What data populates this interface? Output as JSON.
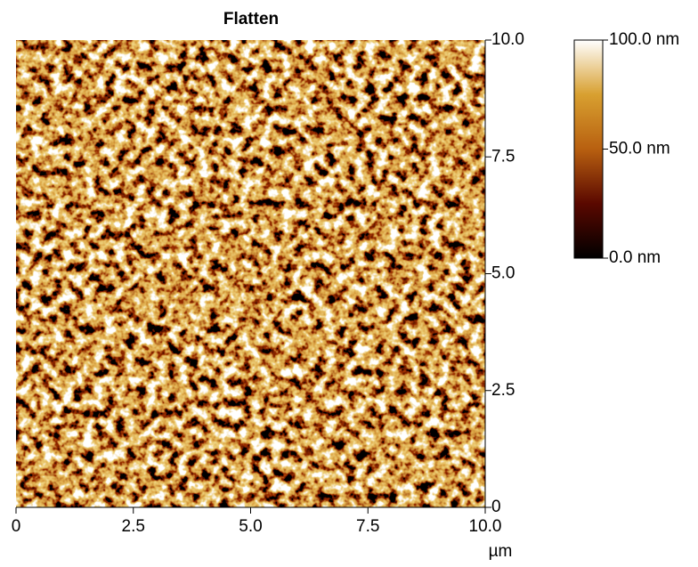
{
  "chart_data": {
    "type": "image",
    "title": "Flatten",
    "xlabel": "µm",
    "xlim": [
      0,
      10
    ],
    "xticks": [
      0,
      2.5,
      {
        "value": 5,
        "label": "5.0"
      },
      7.5,
      {
        "value": 10,
        "label": "10.0"
      }
    ],
    "ylim": [
      0,
      10
    ],
    "yticks": [
      0,
      2.5,
      {
        "value": 5,
        "label": "5.0"
      },
      7.5,
      {
        "value": 10,
        "label": "10.0"
      }
    ],
    "colorbar": {
      "lim": [
        0,
        100
      ],
      "ticks": [
        {
          "value": 0,
          "label": "0.0 nm"
        },
        {
          "value": 50,
          "label": "50.0 nm"
        },
        {
          "value": 100,
          "label": "100.0 nm"
        }
      ],
      "colors": [
        "#000000",
        "#5a0800",
        "#b86010",
        "#d8a030",
        "#ffffff"
      ]
    }
  }
}
